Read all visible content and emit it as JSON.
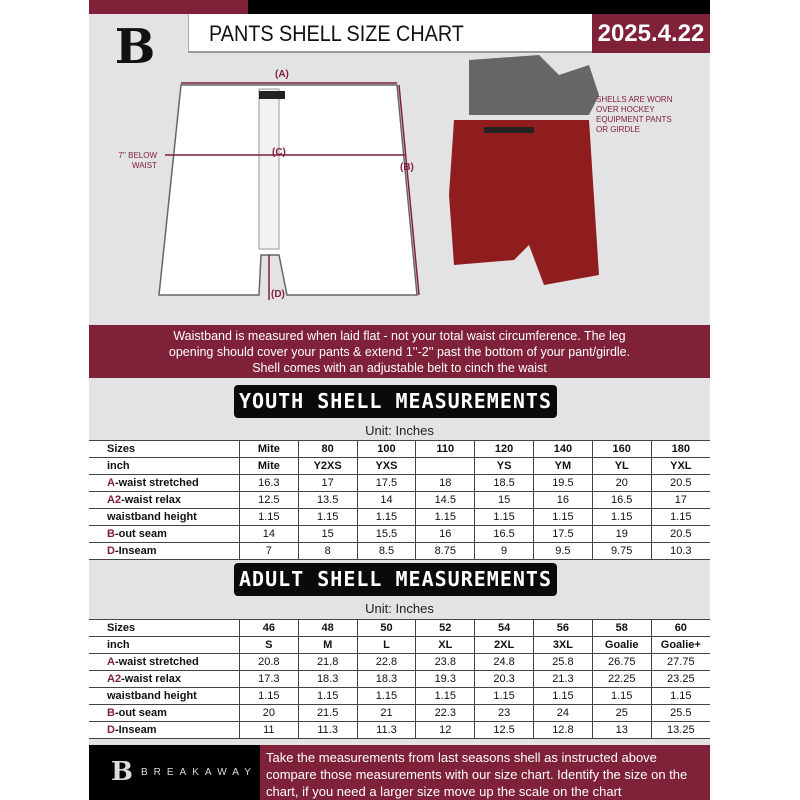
{
  "header": {
    "logo": "B",
    "title": "PANTS SHELL SIZE CHART",
    "date": "2025.4.22"
  },
  "diagram": {
    "label_a": "(A)",
    "label_b": "(B)",
    "label_c": "(C)",
    "label_d": "(D)",
    "below_waist": "7'' BELOW WAIST",
    "shell_note": "SHELLS ARE WORN OVER HOCKEY EQUIPMENT PANTS OR GIRDLE"
  },
  "banner": {
    "line1": "Waistband is measured when laid flat - not your total waist circumference. The leg",
    "line2": "opening should cover your pants & extend 1''-2'' past the bottom of your pant/girdle.",
    "line3": "Shell comes with an adjustable belt to cinch the waist"
  },
  "youth": {
    "title": "YOUTH SHELL MEASUREMENTS",
    "unit": "Unit: Inches",
    "rows": [
      {
        "p": "",
        "l": "Sizes",
        "v": [
          "Mite",
          "80",
          "100",
          "110",
          "120",
          "140",
          "160",
          "180"
        ]
      },
      {
        "p": "",
        "l": "inch",
        "v": [
          "Mite",
          "Y2XS",
          "YXS",
          "",
          "YS",
          "YM",
          "YL",
          "YXL"
        ]
      },
      {
        "p": "A",
        "l": "-waist stretched",
        "v": [
          "16.3",
          "17",
          "17.5",
          "18",
          "18.5",
          "19.5",
          "20",
          "20.5"
        ]
      },
      {
        "p": "A2",
        "l": "-waist relax",
        "v": [
          "12.5",
          "13.5",
          "14",
          "14.5",
          "15",
          "16",
          "16.5",
          "17"
        ]
      },
      {
        "p": "",
        "l": "waistband height",
        "v": [
          "1.15",
          "1.15",
          "1.15",
          "1.15",
          "1.15",
          "1.15",
          "1.15",
          "1.15"
        ]
      },
      {
        "p": "B",
        "l": "-out seam",
        "v": [
          "14",
          "15",
          "15.5",
          "16",
          "16.5",
          "17.5",
          "19",
          "20.5"
        ]
      },
      {
        "p": "D",
        "l": "-Inseam",
        "v": [
          "7",
          "8",
          "8.5",
          "8.75",
          "9",
          "9.5",
          "9.75",
          "10.3"
        ]
      }
    ]
  },
  "adult": {
    "title": "ADULT SHELL MEASUREMENTS",
    "unit": "Unit: Inches",
    "rows": [
      {
        "p": "",
        "l": "Sizes",
        "v": [
          "46",
          "48",
          "50",
          "52",
          "54",
          "56",
          "58",
          "60"
        ]
      },
      {
        "p": "",
        "l": "inch",
        "v": [
          "S",
          "M",
          "L",
          "XL",
          "2XL",
          "3XL",
          "Goalie",
          "Goalie+"
        ]
      },
      {
        "p": "A",
        "l": "-waist stretched",
        "v": [
          "20.8",
          "21.8",
          "22.8",
          "23.8",
          "24.8",
          "25.8",
          "26.75",
          "27.75"
        ]
      },
      {
        "p": "A2",
        "l": "-waist relax",
        "v": [
          "17.3",
          "18.3",
          "18.3",
          "19.3",
          "20.3",
          "21.3",
          "22.25",
          "23.25"
        ]
      },
      {
        "p": "",
        "l": "waistband height",
        "v": [
          "1.15",
          "1.15",
          "1.15",
          "1.15",
          "1.15",
          "1.15",
          "1.15",
          "1.15"
        ]
      },
      {
        "p": "B",
        "l": "-out seam",
        "v": [
          "20",
          "21.5",
          "21",
          "22.3",
          "23",
          "24",
          "25",
          "25.5"
        ]
      },
      {
        "p": "D",
        "l": "-Inseam",
        "v": [
          "11",
          "11.3",
          "11.3",
          "12",
          "12.5",
          "12.8",
          "13",
          "13.25"
        ]
      }
    ]
  },
  "footer": {
    "brand": "BREAKAWAY",
    "logo": "B",
    "text": "Take the measurements from last seasons shell as instructed above compare those measurements  with our size chart. Identify the size on the chart, if you need a larger size move up the scale on the chart"
  },
  "colors": {
    "brand": "#7f2139",
    "black": "#000000",
    "background": "#e3e3e6"
  }
}
